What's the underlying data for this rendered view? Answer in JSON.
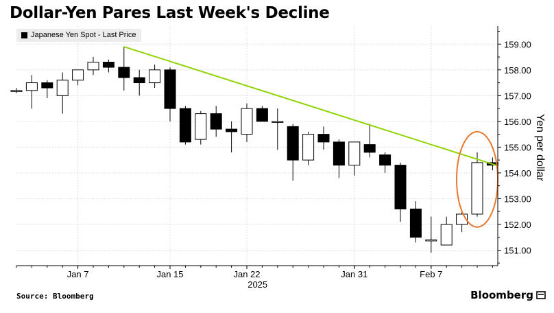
{
  "header": {
    "title": "Dollar-Yen Pares Last Week's Decline"
  },
  "footer": {
    "source": "Source: Bloomberg",
    "brand": "Bloomberg"
  },
  "colors": {
    "up_fill": "#ffffff",
    "down_fill": "#000000",
    "trend": "#8fd400",
    "circle": "#e8782c",
    "grid": "#dddddd"
  },
  "chart_data": {
    "type": "candlestick",
    "title": "Dollar-Yen Pares Last Week's Decline",
    "legend": [
      "Japanese Yen Spot - Last Price"
    ],
    "ylabel": "Yen per dollar",
    "ylim": [
      150.4,
      159.7
    ],
    "yticks": [
      "159.00",
      "158.00",
      "157.00",
      "156.00",
      "155.00",
      "154.00",
      "153.00",
      "152.00",
      "151.00"
    ],
    "xticks": [
      {
        "label": "Jan 7",
        "index": 4
      },
      {
        "label": "Jan 15",
        "index": 10
      },
      {
        "label": "Jan 22",
        "index": 15
      },
      {
        "label": "Jan 31",
        "index": 22
      },
      {
        "label": "Feb 7",
        "index": 27
      }
    ],
    "year_label": "2025",
    "candles": [
      {
        "o": 157.2,
        "h": 157.3,
        "l": 157.1,
        "c": 157.2
      },
      {
        "o": 157.2,
        "h": 157.8,
        "l": 156.5,
        "c": 157.5
      },
      {
        "o": 157.5,
        "h": 157.6,
        "l": 156.9,
        "c": 157.3
      },
      {
        "o": 157.0,
        "h": 157.9,
        "l": 156.3,
        "c": 157.6
      },
      {
        "o": 157.6,
        "h": 158.0,
        "l": 157.4,
        "c": 158.0
      },
      {
        "o": 158.0,
        "h": 158.5,
        "l": 157.8,
        "c": 158.3
      },
      {
        "o": 158.3,
        "h": 158.4,
        "l": 157.9,
        "c": 158.1
      },
      {
        "o": 158.1,
        "h": 158.9,
        "l": 157.2,
        "c": 157.7
      },
      {
        "o": 157.7,
        "h": 158.0,
        "l": 157.0,
        "c": 157.5
      },
      {
        "o": 157.5,
        "h": 158.2,
        "l": 157.3,
        "c": 158.0
      },
      {
        "o": 158.0,
        "h": 158.1,
        "l": 156.0,
        "c": 156.5
      },
      {
        "o": 156.5,
        "h": 156.6,
        "l": 155.1,
        "c": 155.2
      },
      {
        "o": 155.3,
        "h": 156.4,
        "l": 155.1,
        "c": 156.3
      },
      {
        "o": 156.3,
        "h": 156.6,
        "l": 155.4,
        "c": 155.7
      },
      {
        "o": 155.7,
        "h": 156.0,
        "l": 154.8,
        "c": 155.6
      },
      {
        "o": 155.5,
        "h": 156.7,
        "l": 155.2,
        "c": 156.5
      },
      {
        "o": 156.5,
        "h": 156.6,
        "l": 156.0,
        "c": 156.0
      },
      {
        "o": 156.0,
        "h": 156.5,
        "l": 154.9,
        "c": 156.0
      },
      {
        "o": 155.8,
        "h": 155.9,
        "l": 153.7,
        "c": 154.5
      },
      {
        "o": 154.5,
        "h": 155.6,
        "l": 154.3,
        "c": 155.5
      },
      {
        "o": 155.5,
        "h": 155.8,
        "l": 154.9,
        "c": 155.2
      },
      {
        "o": 155.2,
        "h": 155.3,
        "l": 153.8,
        "c": 154.3
      },
      {
        "o": 154.3,
        "h": 155.2,
        "l": 153.9,
        "c": 155.2
      },
      {
        "o": 155.1,
        "h": 155.9,
        "l": 154.6,
        "c": 154.8
      },
      {
        "o": 154.7,
        "h": 154.8,
        "l": 154.0,
        "c": 154.3
      },
      {
        "o": 154.3,
        "h": 154.4,
        "l": 152.1,
        "c": 152.6
      },
      {
        "o": 152.6,
        "h": 152.9,
        "l": 151.3,
        "c": 151.5
      },
      {
        "o": 151.4,
        "h": 152.3,
        "l": 150.9,
        "c": 151.4
      },
      {
        "o": 151.2,
        "h": 152.3,
        "l": 151.2,
        "c": 152.0
      },
      {
        "o": 152.0,
        "h": 152.5,
        "l": 151.7,
        "c": 152.4
      },
      {
        "o": 152.4,
        "h": 154.8,
        "l": 152.3,
        "c": 154.4
      },
      {
        "o": 154.4,
        "h": 154.6,
        "l": 154.1,
        "c": 154.3
      }
    ],
    "trendline": {
      "from": {
        "index": 7,
        "value": 158.9
      },
      "to": {
        "index": 31,
        "value": 154.3
      }
    },
    "annotation": {
      "type": "ellipse",
      "around_index": 30,
      "value_range": [
        151.9,
        155.6
      ]
    }
  }
}
